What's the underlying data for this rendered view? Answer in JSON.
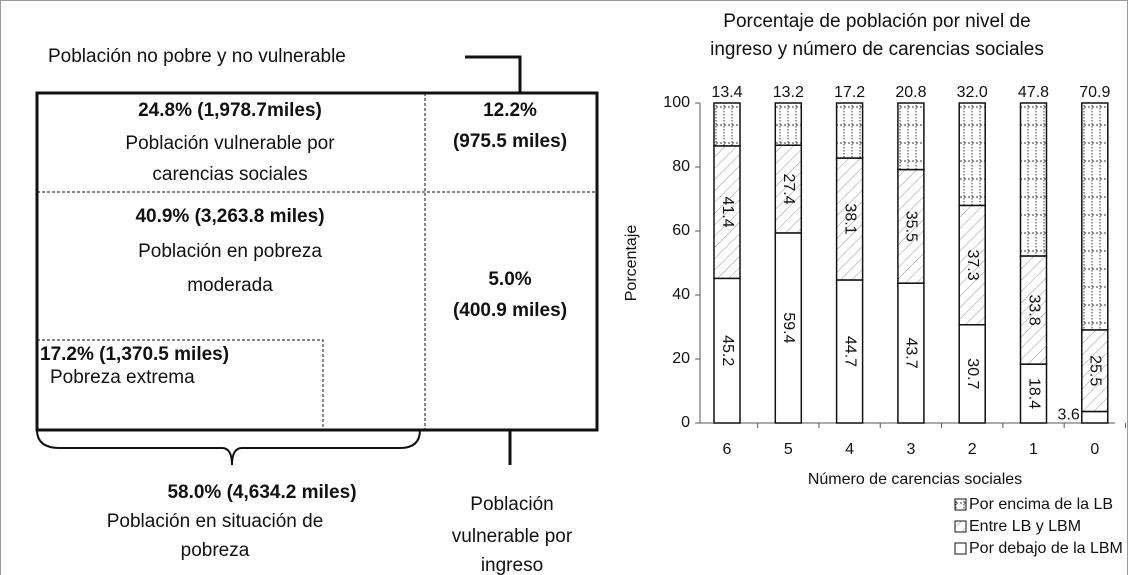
{
  "diagram": {
    "top_label": "Población no pobre y no vulnerable",
    "vulnerable_carencias": {
      "figure": "24.8% (1,978.7miles)",
      "lines": [
        "Población vulnerable por",
        "carencias sociales"
      ]
    },
    "vulnerable_ingreso_top": {
      "figure": "12.2%",
      "detail": "(975.5 miles)"
    },
    "pobreza_moderada": {
      "figure": "40.9% (3,263.8 miles)",
      "lines": [
        "Población en pobreza",
        "moderada"
      ]
    },
    "vulnerable_ingreso_bottom": {
      "figure": "5.0%",
      "detail": "(400.9 miles)"
    },
    "pobreza_extrema": {
      "figure": "17.2% (1,370.5 miles)",
      "label": "Pobreza extrema"
    },
    "pobreza_total": {
      "figure": "58.0% (4,634.2 miles)",
      "lines": [
        "Población en situación de",
        "pobreza"
      ]
    },
    "vulnerable_ingreso_label": [
      "Población",
      "vulnerable por",
      "ingreso"
    ]
  },
  "chart_data": {
    "type": "stacked_bar",
    "title": [
      "Porcentaje de población por nivel de",
      "ingreso y número de carencias sociales"
    ],
    "x_label": "Número de carencias sociales",
    "y_label": "Porcentaje",
    "categories": [
      "6",
      "5",
      "4",
      "3",
      "2",
      "1",
      "0"
    ],
    "ylim": [
      0,
      100
    ],
    "yticks": [
      0,
      20,
      40,
      60,
      80,
      100
    ],
    "series": [
      {
        "name": "Por debajo de la LBM",
        "values": [
          45.2,
          59.4,
          44.7,
          43.7,
          30.7,
          18.4,
          3.6
        ]
      },
      {
        "name": "Entre LB y LBM",
        "values": [
          41.4,
          27.4,
          38.1,
          35.5,
          37.3,
          33.8,
          25.5
        ]
      },
      {
        "name": "Por encima de la LB",
        "values": [
          13.4,
          13.2,
          17.2,
          20.8,
          32.0,
          47.8,
          70.9
        ],
        "value_labels": [
          "13.4",
          "13.2",
          "17.2",
          "20.8",
          "32.0",
          "47.8",
          "70.9"
        ]
      }
    ]
  }
}
